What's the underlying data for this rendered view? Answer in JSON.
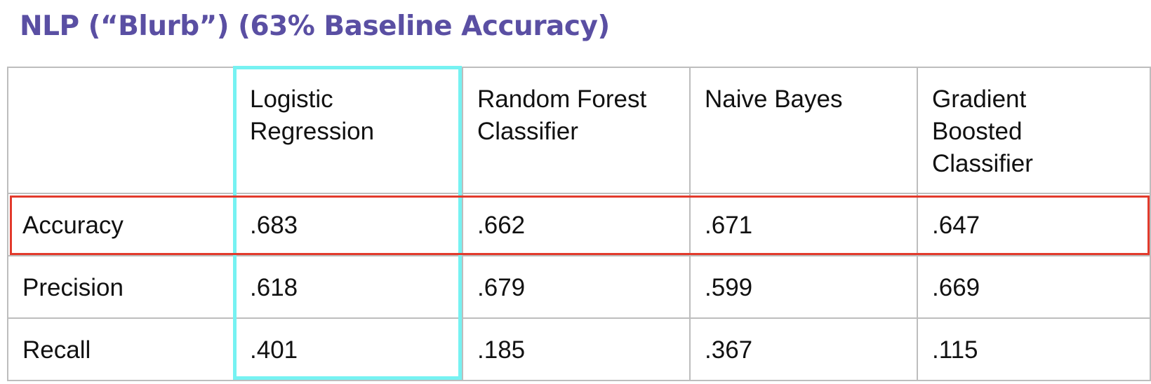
{
  "title": "NLP (“Blurb”) (63% Baseline Accuracy)",
  "highlight_colors": {
    "column_outline": "#76f2f2",
    "row_outline": "#e23a2c",
    "title": "#5a4fa3"
  },
  "chart_data": {
    "type": "table",
    "title": "NLP (“Blurb”) (63% Baseline Accuracy)",
    "columns": [
      "",
      "Logistic\nRegression",
      "Random Forest\nClassifier",
      "Naive Bayes",
      "Gradient\nBoosted\nClassifier"
    ],
    "rows": [
      {
        "label": "Accuracy",
        "values": [
          ".683",
          ".662",
          ".671",
          ".647"
        ]
      },
      {
        "label": "Precision",
        "values": [
          ".618",
          ".679",
          ".599",
          ".669"
        ]
      },
      {
        "label": "Recall",
        "values": [
          ".401",
          ".185",
          ".367",
          ".115"
        ]
      }
    ],
    "highlighted_column": "Logistic\nRegression",
    "highlighted_row": "Accuracy"
  }
}
